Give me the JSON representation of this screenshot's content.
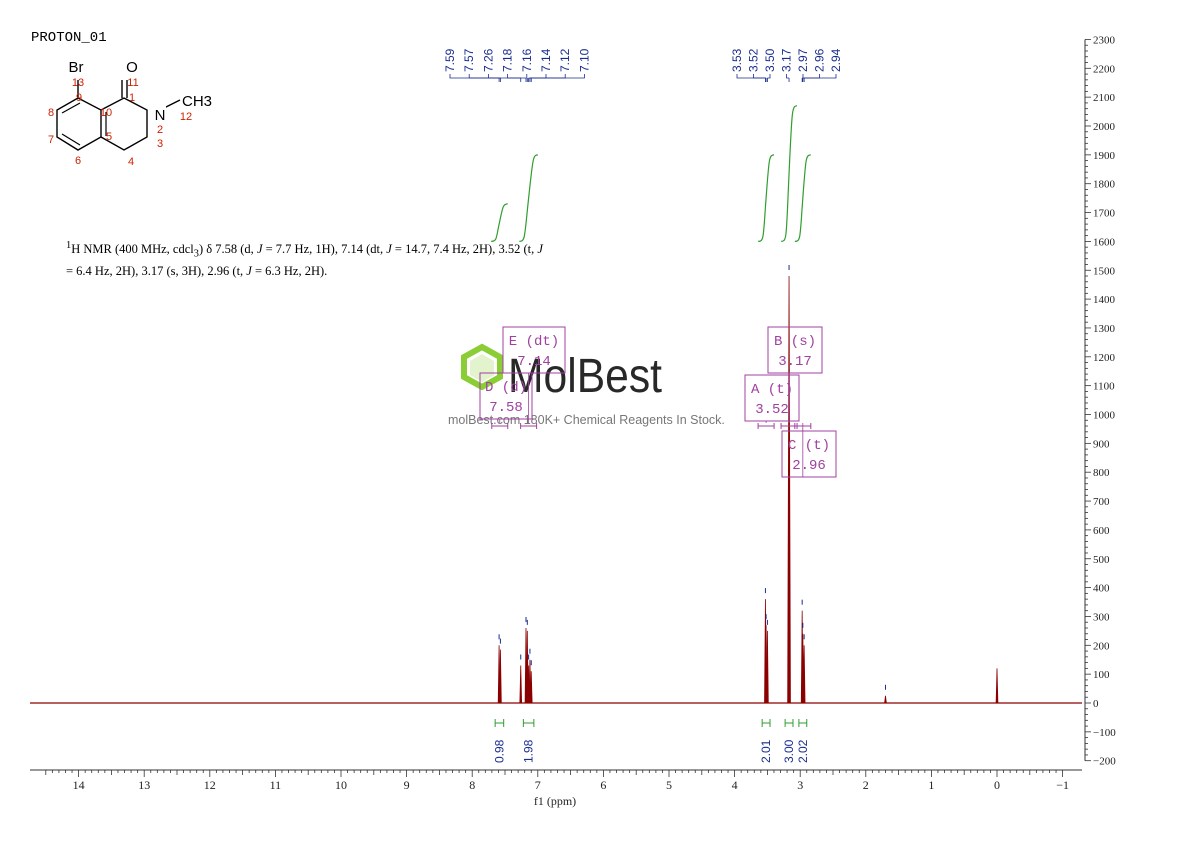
{
  "title": "PROTON_01",
  "description": {
    "p1": "H NMR (400 MHz, cdcl",
    "p1_sup": "1",
    "p1_sub": "3",
    "p2": ") δ 7.58 (d, ",
    "j": "J",
    "p3": " = 7.7 Hz, 1H), 7.14 (dt, ",
    "p4": " = 14.7, 7.4 Hz, 2H), 3.52 (t, ",
    "p5": "= 6.4 Hz, 2H), 3.17 (s, 3H), 2.96 (t, ",
    "p6": " = 6.3 Hz, 2H)."
  },
  "watermark": {
    "logo": "MolBest",
    "caption": "molBest.com 180K+ Chemical Reagents In Stock."
  },
  "structure": {
    "atoms": [
      "Br",
      "O",
      "N",
      "CH3"
    ],
    "numbers": [
      "13",
      "9",
      "8",
      "7",
      "6",
      "5",
      "10",
      "1",
      "11",
      "2",
      "12",
      "3",
      "4"
    ]
  },
  "chart_data": {
    "type": "line",
    "xlabel": "f1 (ppm)",
    "x_reversed": true,
    "xlim": [
      14.8,
      -1.3
    ],
    "ylim": [
      -200,
      2300
    ],
    "x_ticks": [
      "14",
      "13",
      "12",
      "11",
      "10",
      "9",
      "8",
      "7",
      "6",
      "5",
      "4",
      "3",
      "2",
      "1",
      "0",
      "−1"
    ],
    "y_ticks": [
      "2300",
      "2200",
      "2100",
      "2000",
      "1900",
      "1800",
      "1700",
      "1600",
      "1500",
      "1400",
      "1300",
      "1200",
      "1100",
      "1000",
      "900",
      "800",
      "700",
      "600",
      "500",
      "400",
      "300",
      "200",
      "100",
      "0",
      "−100",
      "−200"
    ],
    "peak_labels_group1": [
      "7.59",
      "7.57",
      "7.26",
      "7.18",
      "7.16",
      "7.14",
      "7.12",
      "7.10"
    ],
    "peak_labels_group2": [
      "3.53",
      "3.52",
      "3.50",
      "3.17",
      "2.97",
      "2.96",
      "2.94"
    ],
    "peaks": [
      {
        "ppm": 7.59,
        "height": 200
      },
      {
        "ppm": 7.57,
        "height": 185
      },
      {
        "ppm": 7.26,
        "height": 130
      },
      {
        "ppm": 7.18,
        "height": 260
      },
      {
        "ppm": 7.16,
        "height": 250
      },
      {
        "ppm": 7.14,
        "height": 130
      },
      {
        "ppm": 7.12,
        "height": 150
      },
      {
        "ppm": 7.1,
        "height": 110
      },
      {
        "ppm": 3.53,
        "height": 360
      },
      {
        "ppm": 3.52,
        "height": 270
      },
      {
        "ppm": 3.5,
        "height": 250
      },
      {
        "ppm": 3.17,
        "height": 1480
      },
      {
        "ppm": 2.97,
        "height": 320
      },
      {
        "ppm": 2.96,
        "height": 240
      },
      {
        "ppm": 2.94,
        "height": 200
      },
      {
        "ppm": 1.7,
        "height": 25
      },
      {
        "ppm": 0.0,
        "height": 120
      }
    ],
    "integrals": [
      {
        "from": 7.65,
        "to": 7.52,
        "value": "0.98",
        "curve_top": 1730
      },
      {
        "from": 7.22,
        "to": 7.06,
        "value": "1.98",
        "curve_top": 1900
      },
      {
        "from": 3.58,
        "to": 3.46,
        "value": "2.01",
        "curve_top": 1900
      },
      {
        "from": 3.23,
        "to": 3.11,
        "value": "3.00",
        "curve_top": 2070
      },
      {
        "from": 3.02,
        "to": 2.9,
        "value": "2.02",
        "curve_top": 1900
      }
    ],
    "multiplets": [
      {
        "label": "E (dt)",
        "value": "7.14",
        "ppm": 7.14
      },
      {
        "label": "D (d)",
        "value": "7.58",
        "ppm": 7.58
      },
      {
        "label": "B (s)",
        "value": "3.17",
        "ppm": 3.17
      },
      {
        "label": "A (t)",
        "value": "3.52",
        "ppm": 3.52
      },
      {
        "label": "C (t)",
        "value": "2.96",
        "ppm": 2.96
      }
    ],
    "colors": {
      "spectrum": "#8b0000",
      "integral": "#2e9e2e",
      "peak_label": "#1a2c8f",
      "multiplet": "#a040a0",
      "number": "#cc2200"
    }
  }
}
